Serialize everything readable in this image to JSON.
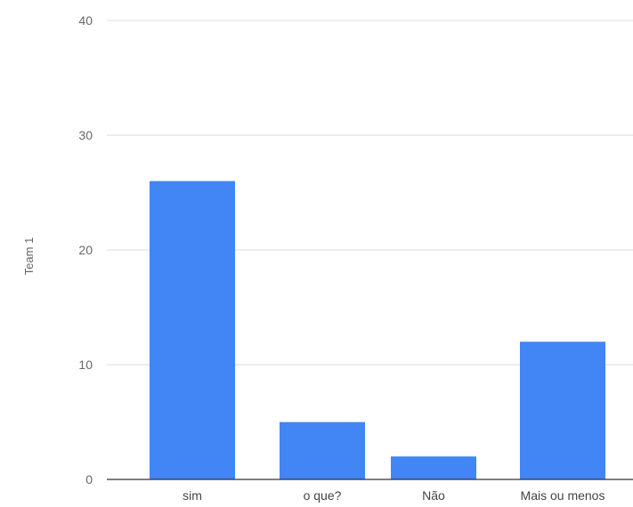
{
  "chart_data": {
    "type": "bar",
    "categories": [
      "sim",
      "o que?",
      "Não",
      "Mais ou menos"
    ],
    "values": [
      26,
      5,
      2,
      12
    ],
    "title": "",
    "xlabel": "",
    "ylabel": "Team 1",
    "ylim": [
      0,
      40
    ],
    "yticks": [
      "0",
      "10",
      "20",
      "30",
      "40"
    ],
    "grid": true,
    "legend": "none",
    "colors": {
      "bar": "#4285f4",
      "grid": "#d9d9d9",
      "axis": "#333333"
    }
  }
}
